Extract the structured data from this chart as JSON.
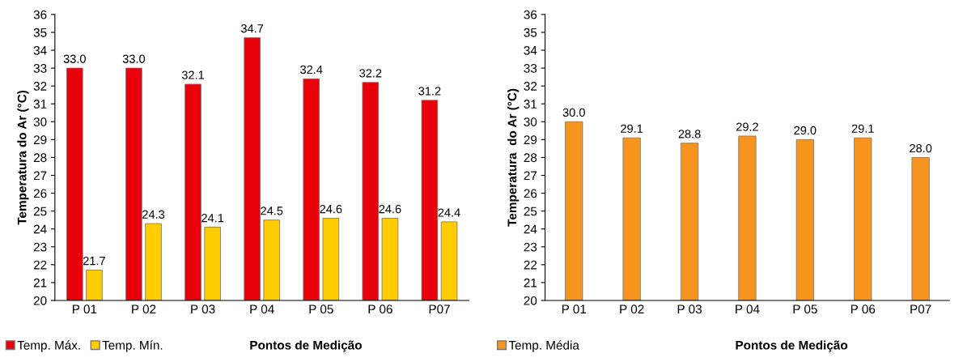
{
  "chart_data": [
    {
      "type": "bar",
      "xlabel": "Pontos de Medição",
      "ylabel": "Temperatura do Ar (°C)",
      "categories": [
        "P 01",
        "P 02",
        "P 03",
        "P 04",
        "P 05",
        "P 06",
        "P07"
      ],
      "series": [
        {
          "name": "Temp. Máx.",
          "color": "#e8000b",
          "values": [
            33.0,
            33.0,
            32.1,
            34.7,
            32.4,
            32.2,
            31.2
          ],
          "value_labels": [
            "33.0",
            "33.0",
            "32.1",
            "34.7",
            "32.4",
            "32.2",
            "31.2"
          ]
        },
        {
          "name": "Temp. Mín.",
          "color": "#ffcc00",
          "values": [
            21.7,
            24.3,
            24.1,
            24.5,
            24.6,
            24.6,
            24.4
          ],
          "value_labels": [
            "21.7",
            "24.3",
            "24.1",
            "24.5",
            "24.6",
            "24.6",
            "24.4"
          ]
        }
      ],
      "ylim": [
        20,
        36
      ],
      "yticks": [
        20,
        21,
        22,
        23,
        24,
        25,
        26,
        27,
        28,
        29,
        30,
        31,
        32,
        33,
        34,
        35,
        36
      ],
      "legend": "bottom left",
      "grid": false
    },
    {
      "type": "bar",
      "xlabel": "Pontos de Medição",
      "ylabel": "Temperatura  do Ar (°C)",
      "categories": [
        "P 01",
        "P 02",
        "P 03",
        "P 04",
        "P 05",
        "P 06",
        "P07"
      ],
      "series": [
        {
          "name": "Temp. Média",
          "color": "#f7941d",
          "values": [
            30.0,
            29.1,
            28.8,
            29.2,
            29.0,
            29.1,
            28.0
          ],
          "value_labels": [
            "30.0",
            "29.1",
            "28.8",
            "29.2",
            "29.0",
            "29.1",
            "28.0"
          ]
        }
      ],
      "ylim": [
        20,
        36
      ],
      "yticks": [
        20,
        21,
        22,
        23,
        24,
        25,
        26,
        27,
        28,
        29,
        30,
        31,
        32,
        33,
        34,
        35,
        36
      ],
      "legend": "bottom left",
      "grid": false
    }
  ]
}
